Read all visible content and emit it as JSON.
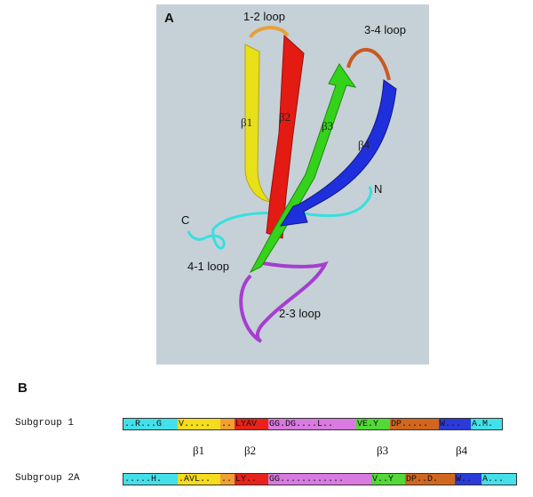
{
  "panel_a": {
    "letter": "A",
    "loops": {
      "loop12": "1-2 loop",
      "loop34": "3-4 loop",
      "loop41": "4-1 loop",
      "loop23": "2-3 loop"
    },
    "termini": {
      "n": "N",
      "c": "C"
    },
    "strands": {
      "b1": "β1",
      "b2": "β2",
      "b3": "β3",
      "b4": "β4"
    },
    "colors": {
      "background": "#c6d0d7",
      "beta1": "#e8e019",
      "beta2": "#e31b12",
      "beta3": "#34d21a",
      "beta4": "#1f2fdc",
      "loop12": "#e8a038",
      "loop34": "#c85a20",
      "loop23": "#a53ed0",
      "termini": "#36e0e0"
    }
  },
  "panel_b": {
    "letter": "B",
    "beta_labels": [
      "β1",
      "β2",
      "β3",
      "β4"
    ],
    "rows": [
      {
        "name": "Subgroup 1",
        "segments": [
          {
            "text": "..R...G",
            "color": "#44e0ea"
          },
          {
            "text": "V.....",
            "color": "#f5dc1e"
          },
          {
            "text": "..",
            "color": "#f0a030"
          },
          {
            "text": "LYAV",
            "color": "#e8221a"
          },
          {
            "text": "GG.DG....L..",
            "color": "#d87adf"
          },
          {
            "text": "VE.Y",
            "color": "#52d938"
          },
          {
            "text": "DP.....",
            "color": "#d1671f"
          },
          {
            "text": "W...",
            "color": "#2b3ad9"
          },
          {
            "text": "A.M.",
            "color": "#44e0ea"
          }
        ]
      },
      {
        "name": "Subgroup 2A",
        "segments": [
          {
            "text": ".....H.",
            "color": "#44e0ea"
          },
          {
            "text": ".AVL..",
            "color": "#f5dc1e"
          },
          {
            "text": "..",
            "color": "#f0a030"
          },
          {
            "text": "LY..",
            "color": "#e8221a"
          },
          {
            "text": "GG............",
            "color": "#d87adf"
          },
          {
            "text": "V..Y",
            "color": "#52d938"
          },
          {
            "text": "DP..D.",
            "color": "#d1671f"
          },
          {
            "text": "W..",
            "color": "#2b3ad9"
          },
          {
            "text": "A...",
            "color": "#44e0ea"
          }
        ]
      }
    ]
  }
}
